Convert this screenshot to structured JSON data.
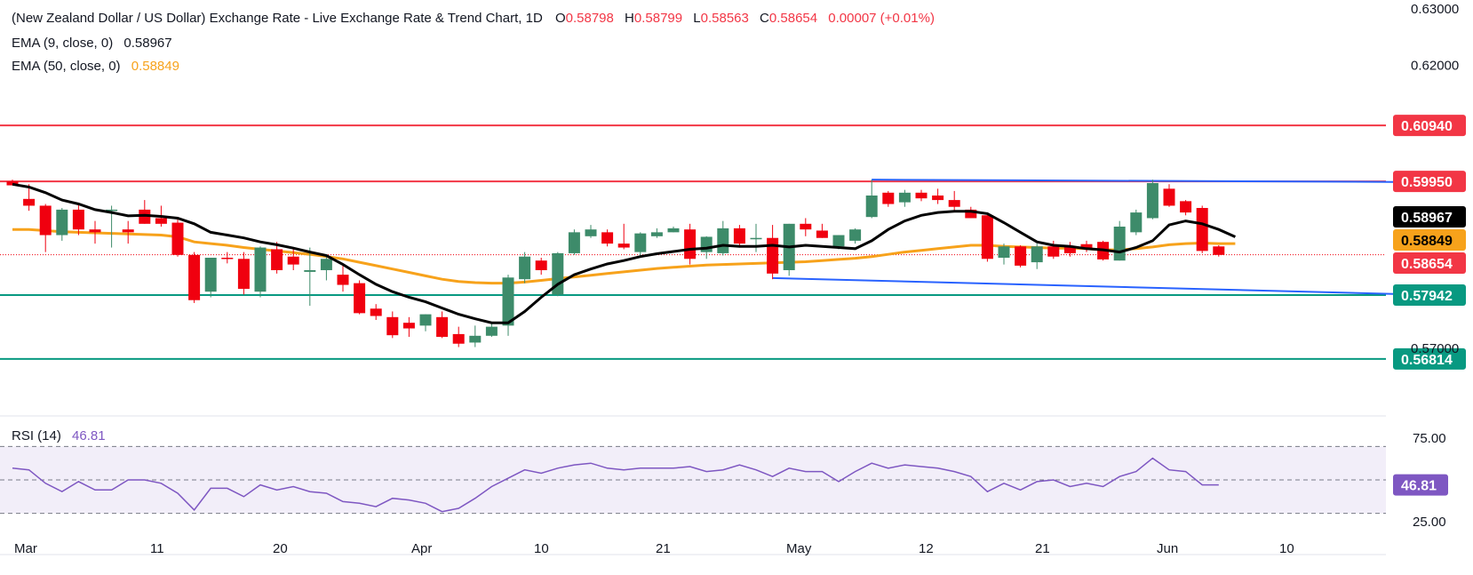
{
  "header": {
    "title": "(New Zealand Dollar / US Dollar) Exchange Rate - Live Exchange Rate & Trend Chart, 1D",
    "o_label": "O",
    "o_value": "0.58798",
    "h_label": "H",
    "h_value": "0.58799",
    "l_label": "L",
    "l_value": "0.58563",
    "c_label": "C",
    "c_value": "0.58654",
    "change": "0.00007 (+0.01%)",
    "ema9_label": "EMA (9, close, 0)",
    "ema9_value": "0.58967",
    "ema50_label": "EMA (50, close, 0)",
    "ema50_value": "0.58849",
    "rsi_label": "RSI (14)",
    "rsi_value": "46.81"
  },
  "colors": {
    "up": "#3d8b6a",
    "down": "#f0000f",
    "ema9": "#000000",
    "ema50": "#f7a21b",
    "resistance": "#f23645",
    "support": "#089981",
    "channel": "#2962ff",
    "rsi": "#7e57c2"
  },
  "chart_data": [
    {
      "type": "candlestick",
      "title": "(New Zealand Dollar / US Dollar) Exchange Rate - Live Exchange Rate & Trend Chart, 1D",
      "x_tick_labels": [
        "Mar",
        "11",
        "20",
        "Apr",
        "10",
        "21",
        "May",
        "12",
        "21",
        "Jun",
        "10"
      ],
      "y_tick_labels": [
        "0.63000",
        "0.62000",
        "0.57000"
      ],
      "ylim": [
        0.564,
        0.63
      ],
      "candles": [
        {
          "o": 0.5995,
          "h": 0.5998,
          "l": 0.5988,
          "c": 0.5988
        },
        {
          "o": 0.5964,
          "h": 0.599,
          "l": 0.5943,
          "c": 0.5952
        },
        {
          "o": 0.5952,
          "h": 0.5955,
          "l": 0.587,
          "c": 0.59
        },
        {
          "o": 0.59,
          "h": 0.5948,
          "l": 0.589,
          "c": 0.5945
        },
        {
          "o": 0.5945,
          "h": 0.5955,
          "l": 0.59,
          "c": 0.591
        },
        {
          "o": 0.591,
          "h": 0.5925,
          "l": 0.5885,
          "c": 0.5905
        },
        {
          "o": 0.5945,
          "h": 0.5952,
          "l": 0.5878,
          "c": 0.5945
        },
        {
          "o": 0.591,
          "h": 0.5925,
          "l": 0.5885,
          "c": 0.5905
        },
        {
          "o": 0.5945,
          "h": 0.5962,
          "l": 0.592,
          "c": 0.592
        },
        {
          "o": 0.593,
          "h": 0.5952,
          "l": 0.5915,
          "c": 0.592
        },
        {
          "o": 0.5922,
          "h": 0.5932,
          "l": 0.5862,
          "c": 0.5865
        },
        {
          "o": 0.5865,
          "h": 0.587,
          "l": 0.578,
          "c": 0.5785
        },
        {
          "o": 0.58,
          "h": 0.586,
          "l": 0.579,
          "c": 0.586
        },
        {
          "o": 0.586,
          "h": 0.587,
          "l": 0.585,
          "c": 0.5858
        },
        {
          "o": 0.5858,
          "h": 0.587,
          "l": 0.5795,
          "c": 0.5805
        },
        {
          "o": 0.58,
          "h": 0.588,
          "l": 0.579,
          "c": 0.5878
        },
        {
          "o": 0.5875,
          "h": 0.5888,
          "l": 0.5832,
          "c": 0.5838
        },
        {
          "o": 0.5862,
          "h": 0.5878,
          "l": 0.5838,
          "c": 0.5848
        },
        {
          "o": 0.5835,
          "h": 0.5878,
          "l": 0.5775,
          "c": 0.5838
        },
        {
          "o": 0.5838,
          "h": 0.5865,
          "l": 0.582,
          "c": 0.5858
        },
        {
          "o": 0.583,
          "h": 0.585,
          "l": 0.58,
          "c": 0.5812
        },
        {
          "o": 0.5815,
          "h": 0.582,
          "l": 0.576,
          "c": 0.5762
        },
        {
          "o": 0.577,
          "h": 0.5778,
          "l": 0.575,
          "c": 0.5757
        },
        {
          "o": 0.5755,
          "h": 0.5765,
          "l": 0.5718,
          "c": 0.5723
        },
        {
          "o": 0.5745,
          "h": 0.5755,
          "l": 0.572,
          "c": 0.5735
        },
        {
          "o": 0.574,
          "h": 0.576,
          "l": 0.573,
          "c": 0.576
        },
        {
          "o": 0.5755,
          "h": 0.5765,
          "l": 0.5718,
          "c": 0.572
        },
        {
          "o": 0.5725,
          "h": 0.5738,
          "l": 0.5702,
          "c": 0.5708
        },
        {
          "o": 0.571,
          "h": 0.574,
          "l": 0.5702,
          "c": 0.5722
        },
        {
          "o": 0.5722,
          "h": 0.5745,
          "l": 0.572,
          "c": 0.5738
        },
        {
          "o": 0.574,
          "h": 0.583,
          "l": 0.5722,
          "c": 0.5825
        },
        {
          "o": 0.5822,
          "h": 0.587,
          "l": 0.5815,
          "c": 0.5862
        },
        {
          "o": 0.5855,
          "h": 0.586,
          "l": 0.583,
          "c": 0.5838
        },
        {
          "o": 0.5795,
          "h": 0.587,
          "l": 0.5792,
          "c": 0.5868
        },
        {
          "o": 0.5868,
          "h": 0.591,
          "l": 0.5865,
          "c": 0.5905
        },
        {
          "o": 0.5898,
          "h": 0.5918,
          "l": 0.5895,
          "c": 0.591
        },
        {
          "o": 0.5905,
          "h": 0.591,
          "l": 0.588,
          "c": 0.5885
        },
        {
          "o": 0.5885,
          "h": 0.592,
          "l": 0.5875,
          "c": 0.5878
        },
        {
          "o": 0.587,
          "h": 0.5905,
          "l": 0.5862,
          "c": 0.5903
        },
        {
          "o": 0.5898,
          "h": 0.5912,
          "l": 0.5895,
          "c": 0.5905
        },
        {
          "o": 0.5905,
          "h": 0.5915,
          "l": 0.5905,
          "c": 0.5912
        },
        {
          "o": 0.591,
          "h": 0.592,
          "l": 0.5848,
          "c": 0.5858
        },
        {
          "o": 0.587,
          "h": 0.5898,
          "l": 0.5858,
          "c": 0.5897
        },
        {
          "o": 0.5868,
          "h": 0.5925,
          "l": 0.5864,
          "c": 0.5912
        },
        {
          "o": 0.5912,
          "h": 0.5918,
          "l": 0.5878,
          "c": 0.5885
        },
        {
          "o": 0.5895,
          "h": 0.592,
          "l": 0.587,
          "c": 0.5895
        },
        {
          "o": 0.5895,
          "h": 0.5918,
          "l": 0.5822,
          "c": 0.5832
        },
        {
          "o": 0.5838,
          "h": 0.592,
          "l": 0.5828,
          "c": 0.592
        },
        {
          "o": 0.592,
          "h": 0.593,
          "l": 0.5898,
          "c": 0.591
        },
        {
          "o": 0.5908,
          "h": 0.592,
          "l": 0.5895,
          "c": 0.5895
        },
        {
          "o": 0.588,
          "h": 0.59,
          "l": 0.5875,
          "c": 0.59
        },
        {
          "o": 0.589,
          "h": 0.5912,
          "l": 0.5885,
          "c": 0.591
        },
        {
          "o": 0.5932,
          "h": 0.5998,
          "l": 0.593,
          "c": 0.597
        },
        {
          "o": 0.5975,
          "h": 0.5978,
          "l": 0.595,
          "c": 0.5955
        },
        {
          "o": 0.5958,
          "h": 0.598,
          "l": 0.595,
          "c": 0.5975
        },
        {
          "o": 0.5975,
          "h": 0.598,
          "l": 0.596,
          "c": 0.5965
        },
        {
          "o": 0.597,
          "h": 0.5982,
          "l": 0.5955,
          "c": 0.5962
        },
        {
          "o": 0.5962,
          "h": 0.5978,
          "l": 0.5942,
          "c": 0.595
        },
        {
          "o": 0.5945,
          "h": 0.595,
          "l": 0.593,
          "c": 0.593
        },
        {
          "o": 0.5935,
          "h": 0.5938,
          "l": 0.5853,
          "c": 0.5858
        },
        {
          "o": 0.586,
          "h": 0.5885,
          "l": 0.5848,
          "c": 0.588
        },
        {
          "o": 0.588,
          "h": 0.5882,
          "l": 0.5843,
          "c": 0.5846
        },
        {
          "o": 0.5852,
          "h": 0.5885,
          "l": 0.584,
          "c": 0.588
        },
        {
          "o": 0.588,
          "h": 0.589,
          "l": 0.5858,
          "c": 0.5862
        },
        {
          "o": 0.588,
          "h": 0.5888,
          "l": 0.5862,
          "c": 0.5868
        },
        {
          "o": 0.5884,
          "h": 0.589,
          "l": 0.587,
          "c": 0.5877
        },
        {
          "o": 0.5888,
          "h": 0.589,
          "l": 0.5855,
          "c": 0.5857
        },
        {
          "o": 0.5855,
          "h": 0.5925,
          "l": 0.5855,
          "c": 0.5915
        },
        {
          "o": 0.5905,
          "h": 0.5945,
          "l": 0.59,
          "c": 0.594
        },
        {
          "o": 0.593,
          "h": 0.5998,
          "l": 0.5928,
          "c": 0.5992
        },
        {
          "o": 0.5982,
          "h": 0.599,
          "l": 0.595,
          "c": 0.5952
        },
        {
          "o": 0.596,
          "h": 0.5962,
          "l": 0.5935,
          "c": 0.594
        },
        {
          "o": 0.5948,
          "h": 0.5952,
          "l": 0.5868,
          "c": 0.5872
        },
        {
          "o": 0.588,
          "h": 0.5882,
          "l": 0.5862,
          "c": 0.5865
        }
      ],
      "ema9": [
        0.599,
        0.5985,
        0.5975,
        0.5962,
        0.5955,
        0.5945,
        0.594,
        0.5934,
        0.5935,
        0.5933,
        0.593,
        0.592,
        0.5905,
        0.59,
        0.5895,
        0.5888,
        0.5883,
        0.5877,
        0.587,
        0.5864,
        0.5848,
        0.583,
        0.5813,
        0.58,
        0.579,
        0.5782,
        0.5771,
        0.576,
        0.5752,
        0.5745,
        0.5745,
        0.5765,
        0.579,
        0.5813,
        0.583,
        0.584,
        0.5849,
        0.5855,
        0.5862,
        0.5867,
        0.5871,
        0.5875,
        0.5877,
        0.5882,
        0.588,
        0.588,
        0.5882,
        0.5879,
        0.5882,
        0.588,
        0.5878,
        0.5876,
        0.589,
        0.591,
        0.5925,
        0.5935,
        0.594,
        0.5942,
        0.5942,
        0.5938,
        0.5922,
        0.5905,
        0.5888,
        0.5882,
        0.588,
        0.5876,
        0.5874,
        0.587,
        0.5878,
        0.589,
        0.5918,
        0.5925,
        0.592,
        0.591,
        0.5897
      ],
      "ema50": [
        0.591,
        0.591,
        0.5908,
        0.5906,
        0.5905,
        0.5904,
        0.5903,
        0.5902,
        0.5901,
        0.59,
        0.5897,
        0.5888,
        0.5885,
        0.5882,
        0.5878,
        0.5875,
        0.5872,
        0.5869,
        0.5866,
        0.5862,
        0.5858,
        0.5852,
        0.5846,
        0.584,
        0.5834,
        0.5828,
        0.5822,
        0.5818,
        0.5816,
        0.5815,
        0.5815,
        0.5817,
        0.582,
        0.5823,
        0.5826,
        0.5829,
        0.5832,
        0.5835,
        0.5838,
        0.5841,
        0.5843,
        0.5845,
        0.5847,
        0.5848,
        0.5849,
        0.585,
        0.5851,
        0.5852,
        0.5853,
        0.5855,
        0.5857,
        0.5859,
        0.5862,
        0.5866,
        0.587,
        0.5873,
        0.5876,
        0.5879,
        0.5882,
        0.5882,
        0.588,
        0.5879,
        0.5878,
        0.5877,
        0.5877,
        0.5876,
        0.5874,
        0.5874,
        0.5876,
        0.5879,
        0.5883,
        0.5885,
        0.5886,
        0.5885,
        0.5885
      ],
      "horizontal_levels": [
        {
          "value": 0.6094,
          "label": "0.60940",
          "color": "#f23645"
        },
        {
          "value": 0.5995,
          "label": "0.59950",
          "color": "#f23645"
        },
        {
          "value": 0.5794,
          "label": "0.57942",
          "color": "#089981"
        },
        {
          "value": 0.5681,
          "label": "0.56814",
          "color": "#089981"
        }
      ],
      "channel": [
        {
          "x1": 52,
          "y1": 0.5998,
          "x2": "end",
          "y2": 0.5994
        },
        {
          "x1": 46,
          "y1": 0.5824,
          "x2": "end",
          "y2": 0.5796
        }
      ],
      "price_tags": [
        {
          "label": "0.58967",
          "value": 0.58967,
          "bg": "#000000",
          "fg": "#ffffff"
        },
        {
          "label": "0.58849",
          "value": 0.58849,
          "bg": "#f7a21b",
          "fg": "#000000"
        },
        {
          "label": "0.58654",
          "value": 0.58654,
          "bg": "#f23645",
          "fg": "#ffffff"
        }
      ],
      "last_close": 0.58654
    },
    {
      "type": "line",
      "title": "RSI (14)",
      "y_tick_labels": [
        "75.00",
        "25.00"
      ],
      "ylim": [
        25,
        75
      ],
      "bands": [
        70,
        50,
        30
      ],
      "values": [
        57,
        56,
        48,
        43,
        49,
        44,
        44,
        50,
        50,
        48,
        42,
        32,
        45,
        45,
        40,
        47,
        44,
        46,
        43,
        42,
        37,
        36,
        34,
        39,
        38,
        36,
        31,
        33,
        39,
        46,
        51,
        56,
        54,
        57,
        59,
        60,
        57,
        56,
        57,
        57,
        57,
        58,
        55,
        56,
        59,
        56,
        52,
        57,
        55,
        55,
        49,
        55,
        60,
        57,
        59,
        58,
        57,
        55,
        52,
        43,
        48,
        44,
        49,
        50,
        46,
        48,
        46,
        52,
        55,
        63,
        56,
        55,
        47,
        47
      ],
      "current_label": "46.81"
    }
  ]
}
